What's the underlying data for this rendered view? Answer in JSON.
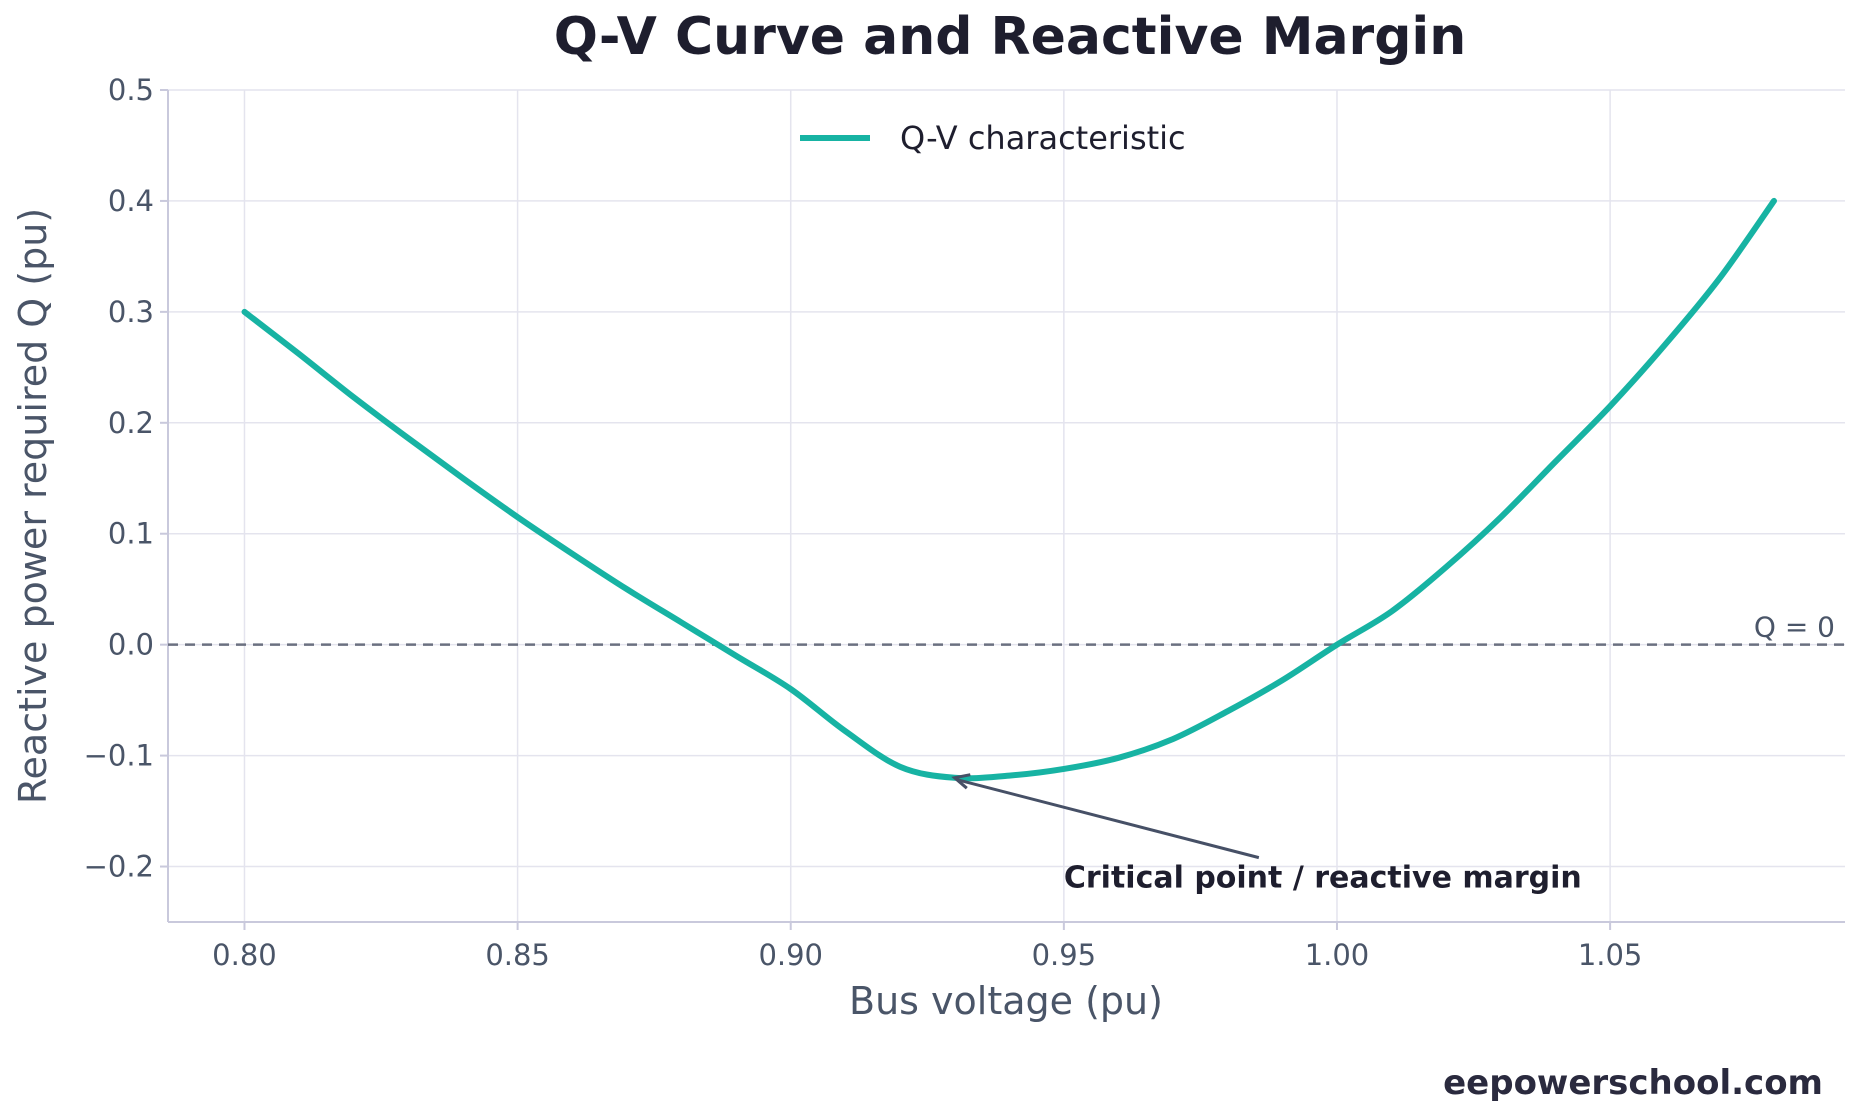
{
  "chart_data": {
    "type": "line",
    "title": "Q-V Curve and Reactive Margin",
    "xlabel": "Bus voltage (pu)",
    "ylabel": "Reactive power required Q (pu)",
    "xlim": [
      0.786,
      1.093
    ],
    "ylim": [
      -0.25,
      0.5
    ],
    "x_ticks": [
      0.8,
      0.85,
      0.9,
      0.95,
      1.0,
      1.05
    ],
    "x_tick_labels": [
      "0.80",
      "0.85",
      "0.90",
      "0.95",
      "1.00",
      "1.05"
    ],
    "y_ticks": [
      -0.2,
      -0.1,
      0.0,
      0.1,
      0.2,
      0.3,
      0.4,
      0.5
    ],
    "y_tick_labels": [
      "−0.2",
      "−0.1",
      "0.0",
      "0.1",
      "0.2",
      "0.3",
      "0.4",
      "0.5"
    ],
    "grid": true,
    "legend_position": "top-center",
    "series": [
      {
        "name": "Q-V characteristic",
        "color": "#17b3a3",
        "x": [
          0.8,
          0.81,
          0.82,
          0.83,
          0.84,
          0.85,
          0.86,
          0.87,
          0.88,
          0.89,
          0.9,
          0.91,
          0.92,
          0.93,
          0.94,
          0.95,
          0.96,
          0.97,
          0.98,
          0.99,
          1.0,
          1.01,
          1.02,
          1.03,
          1.04,
          1.05,
          1.06,
          1.07,
          1.08
        ],
        "y": [
          0.3,
          0.262,
          0.223,
          0.186,
          0.15,
          0.115,
          0.082,
          0.05,
          0.02,
          -0.01,
          -0.04,
          -0.078,
          -0.11,
          -0.12,
          -0.118,
          -0.112,
          -0.102,
          -0.085,
          -0.06,
          -0.032,
          0.0,
          0.03,
          0.07,
          0.115,
          0.165,
          0.215,
          0.27,
          0.33,
          0.4
        ]
      }
    ],
    "reference_line": {
      "y": 0.0,
      "label": "Q = 0",
      "color": "#6b7080"
    },
    "annotation": {
      "text": "Critical point / reactive margin",
      "point": [
        0.93,
        -0.12
      ],
      "text_at": [
        0.95,
        -0.21
      ]
    }
  },
  "footer": {
    "watermark": "eepowerschool.com"
  }
}
